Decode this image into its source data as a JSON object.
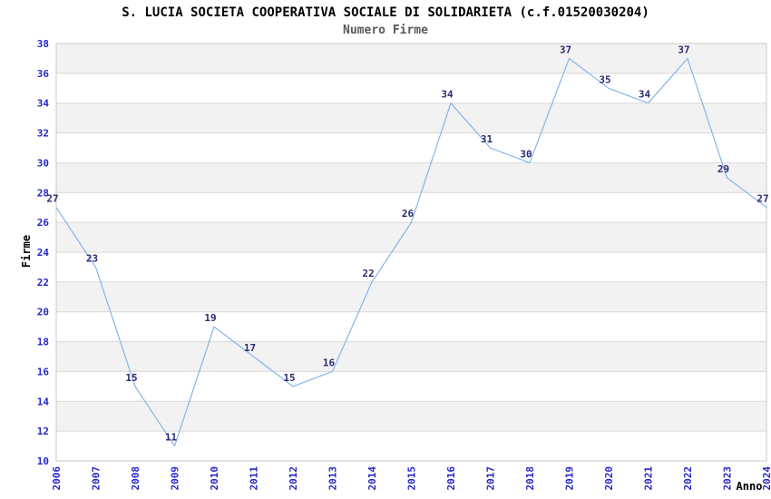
{
  "chart_data": {
    "type": "line",
    "title": "S. LUCIA SOCIETA COOPERATIVA SOCIALE DI SOLIDARIETA (c.f.01520030204)",
    "subtitle": "Numero Firme",
    "xlabel": "Anno",
    "ylabel": "Firme",
    "x": [
      2006,
      2007,
      2008,
      2009,
      2010,
      2011,
      2012,
      2013,
      2014,
      2015,
      2016,
      2017,
      2018,
      2019,
      2020,
      2021,
      2022,
      2023,
      2024
    ],
    "values": [
      27,
      23,
      15,
      11,
      19,
      17,
      15,
      16,
      22,
      26,
      34,
      31,
      30,
      37,
      35,
      34,
      37,
      29,
      27
    ],
    "ylim": [
      10,
      38
    ],
    "ytick_step": 2,
    "grid": true,
    "band_fill": true,
    "point_labels": true,
    "legend_position": "none",
    "colors": {
      "line": "#86b4e8",
      "tick_label": "#2626cc",
      "data_label": "#2a2a72",
      "band": "#f2f2f2",
      "gridline": "#d8d8d8",
      "border": "#c9c9c9",
      "title": "#000000",
      "subtitle": "#595959",
      "axis_label": "#000000"
    }
  }
}
